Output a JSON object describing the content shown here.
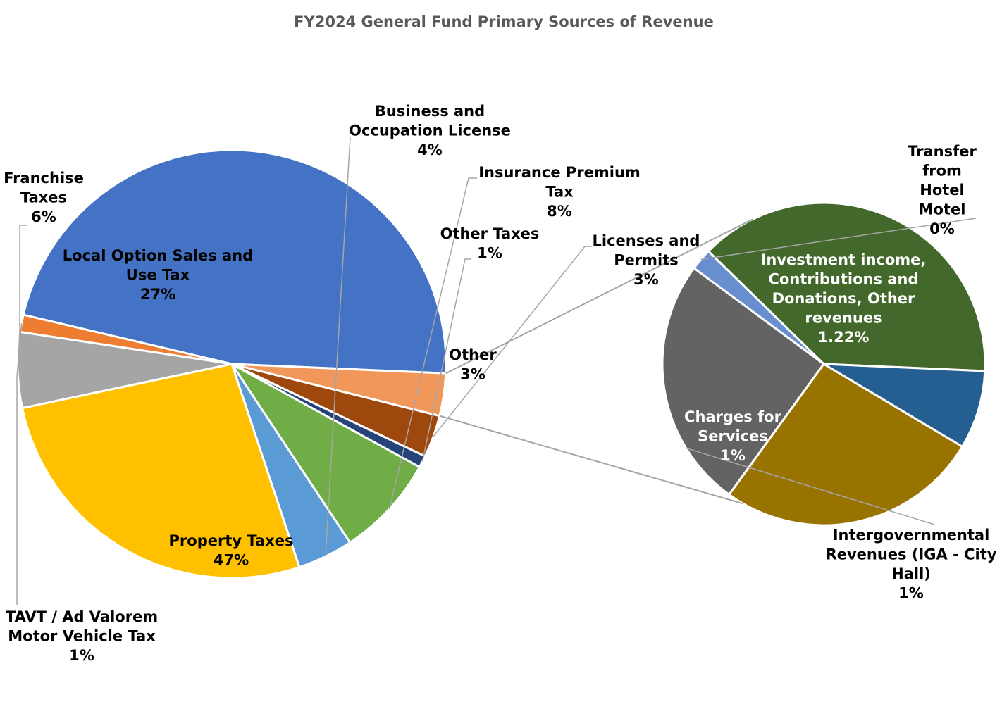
{
  "chart_data": {
    "type": "pie",
    "subtype": "pie-of-pie",
    "title": "FY2024 General Fund Primary Sources of Revenue",
    "legend": "none",
    "data_labels": "category name and percentage",
    "main_pie": {
      "slices": [
        {
          "name": "Property Taxes",
          "pct_label": "47%",
          "value": 47,
          "color": "#4472C4"
        },
        {
          "name": "TAVT / Ad Valorem Motor Vehicle Tax",
          "pct_label": "1%",
          "value": 1.3,
          "color": "#ED7D31"
        },
        {
          "name": "Franchise Taxes",
          "pct_label": "6%",
          "value": 5.7,
          "color": "#A5A5A5"
        },
        {
          "name": "Local Option Sales and Use Tax",
          "pct_label": "27%",
          "value": 26.8,
          "color": "#FFC000"
        },
        {
          "name": "Business and Occupation License",
          "pct_label": "4%",
          "value": 4.2,
          "color": "#5B9BD5"
        },
        {
          "name": "Insurance Premium Tax",
          "pct_label": "8%",
          "value": 7.7,
          "color": "#70AD47"
        },
        {
          "name": "Other Taxes",
          "pct_label": "1%",
          "value": 0.9,
          "color": "#264478"
        },
        {
          "name": "Licenses and Permits",
          "pct_label": "3%",
          "value": 3.2,
          "color": "#9E480E"
        },
        {
          "name": "Other",
          "pct_label": "3%",
          "value": 3.2,
          "color": "#F1975A",
          "is_breakout": true
        }
      ]
    },
    "secondary_pie": {
      "source_slice": "Other",
      "slices": [
        {
          "name": "Investment income, Contributions and Donations, Other revenues",
          "pct_label": "1.22%",
          "value": 1.22,
          "color": "#43682B"
        },
        {
          "name": "Transfer from Hotel Motel",
          "pct_label": "0%",
          "value": 0.07,
          "color": "#698ED0"
        },
        {
          "name": "Intergovernmental Revenues (IGA - City Hall)",
          "pct_label": "1%",
          "value": 0.8,
          "color": "#636363"
        },
        {
          "name": "Charges for Services",
          "pct_label": "1%",
          "value": 0.84,
          "color": "#997300"
        },
        {
          "name": "",
          "pct_label": "",
          "value": 0.25,
          "color": "#255E91"
        }
      ]
    }
  }
}
